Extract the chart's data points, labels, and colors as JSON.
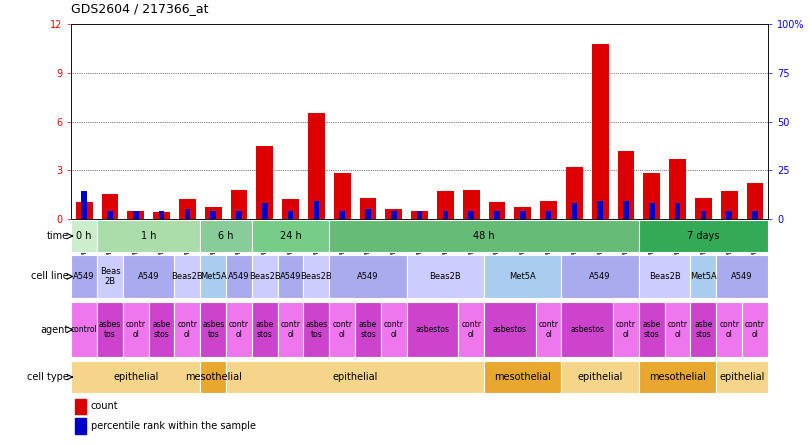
{
  "title": "GDS2604 / 217366_at",
  "samples": [
    "GSM139646",
    "GSM139660",
    "GSM139640",
    "GSM139647",
    "GSM139654",
    "GSM139661",
    "GSM139760",
    "GSM139669",
    "GSM139641",
    "GSM139648",
    "GSM139655",
    "GSM139663",
    "GSM139643",
    "GSM139653",
    "GSM139656",
    "GSM139657",
    "GSM139664",
    "GSM139644",
    "GSM139645",
    "GSM139652",
    "GSM139659",
    "GSM139666",
    "GSM139667",
    "GSM139668",
    "GSM139761",
    "GSM139642",
    "GSM139649"
  ],
  "count_values": [
    1.0,
    1.5,
    0.5,
    0.4,
    1.2,
    0.7,
    1.8,
    4.5,
    1.2,
    6.5,
    2.8,
    1.3,
    0.6,
    0.5,
    1.7,
    1.8,
    1.0,
    0.7,
    1.1,
    3.2,
    10.8,
    4.2,
    2.8,
    3.7,
    1.3,
    1.7,
    2.2
  ],
  "pct_display": [
    14,
    4,
    4,
    4,
    5,
    4,
    4,
    8,
    4,
    9,
    4,
    5,
    4,
    4,
    4,
    4,
    4,
    4,
    4,
    8,
    9,
    9,
    8,
    8,
    4,
    4,
    4
  ],
  "ylim_left": [
    0,
    12
  ],
  "ylim_right": [
    0,
    100
  ],
  "yticks_left": [
    0,
    3,
    6,
    9,
    12
  ],
  "ytick_labels_left": [
    "0",
    "3",
    "6",
    "9",
    "12"
  ],
  "yticks_right": [
    0,
    25,
    50,
    75,
    100
  ],
  "ytick_labels_right": [
    "0",
    "25",
    "50",
    "75",
    "100%"
  ],
  "bar_color_count": "#dd0000",
  "bar_color_pct": "#0000cc",
  "time_spans": [
    {
      "label": "0 h",
      "start": 0,
      "end": 1,
      "color": "#cceecc"
    },
    {
      "label": "1 h",
      "start": 1,
      "end": 5,
      "color": "#aaddaa"
    },
    {
      "label": "6 h",
      "start": 5,
      "end": 7,
      "color": "#88cc99"
    },
    {
      "label": "24 h",
      "start": 7,
      "end": 10,
      "color": "#77cc88"
    },
    {
      "label": "48 h",
      "start": 10,
      "end": 22,
      "color": "#66bb77"
    },
    {
      "label": "7 days",
      "start": 22,
      "end": 27,
      "color": "#33aa55"
    }
  ],
  "cellline_spans": [
    {
      "label": "A549",
      "start": 0,
      "end": 1,
      "color": "#aaaaee"
    },
    {
      "label": "Beas\n2B",
      "start": 1,
      "end": 2,
      "color": "#ccccff"
    },
    {
      "label": "A549",
      "start": 2,
      "end": 4,
      "color": "#aaaaee"
    },
    {
      "label": "Beas2B",
      "start": 4,
      "end": 5,
      "color": "#ccccff"
    },
    {
      "label": "Met5A",
      "start": 5,
      "end": 6,
      "color": "#aaccee"
    },
    {
      "label": "A549",
      "start": 6,
      "end": 7,
      "color": "#aaaaee"
    },
    {
      "label": "Beas2B",
      "start": 7,
      "end": 8,
      "color": "#ccccff"
    },
    {
      "label": "A549",
      "start": 8,
      "end": 9,
      "color": "#aaaaee"
    },
    {
      "label": "Beas2B",
      "start": 9,
      "end": 10,
      "color": "#ccccff"
    },
    {
      "label": "A549",
      "start": 10,
      "end": 13,
      "color": "#aaaaee"
    },
    {
      "label": "Beas2B",
      "start": 13,
      "end": 16,
      "color": "#ccccff"
    },
    {
      "label": "Met5A",
      "start": 16,
      "end": 19,
      "color": "#aaccee"
    },
    {
      "label": "A549",
      "start": 19,
      "end": 22,
      "color": "#aaaaee"
    },
    {
      "label": "Beas2B",
      "start": 22,
      "end": 24,
      "color": "#ccccff"
    },
    {
      "label": "Met5A",
      "start": 24,
      "end": 25,
      "color": "#aaccee"
    },
    {
      "label": "A549",
      "start": 25,
      "end": 27,
      "color": "#aaaaee"
    }
  ],
  "agent_spans": [
    {
      "label": "control",
      "start": 0,
      "end": 1,
      "color": "#ee77ee"
    },
    {
      "label": "asbes\ntos",
      "start": 1,
      "end": 2,
      "color": "#cc44cc"
    },
    {
      "label": "contr\nol",
      "start": 2,
      "end": 3,
      "color": "#ee77ee"
    },
    {
      "label": "asbe\nstos",
      "start": 3,
      "end": 4,
      "color": "#cc44cc"
    },
    {
      "label": "contr\nol",
      "start": 4,
      "end": 5,
      "color": "#ee77ee"
    },
    {
      "label": "asbes\ntos",
      "start": 5,
      "end": 6,
      "color": "#cc44cc"
    },
    {
      "label": "contr\nol",
      "start": 6,
      "end": 7,
      "color": "#ee77ee"
    },
    {
      "label": "asbe\nstos",
      "start": 7,
      "end": 8,
      "color": "#cc44cc"
    },
    {
      "label": "contr\nol",
      "start": 8,
      "end": 9,
      "color": "#ee77ee"
    },
    {
      "label": "asbes\ntos",
      "start": 9,
      "end": 10,
      "color": "#cc44cc"
    },
    {
      "label": "contr\nol",
      "start": 10,
      "end": 11,
      "color": "#ee77ee"
    },
    {
      "label": "asbe\nstos",
      "start": 11,
      "end": 12,
      "color": "#cc44cc"
    },
    {
      "label": "contr\nol",
      "start": 12,
      "end": 13,
      "color": "#ee77ee"
    },
    {
      "label": "asbestos",
      "start": 13,
      "end": 15,
      "color": "#cc44cc"
    },
    {
      "label": "contr\nol",
      "start": 15,
      "end": 16,
      "color": "#ee77ee"
    },
    {
      "label": "asbestos",
      "start": 16,
      "end": 18,
      "color": "#cc44cc"
    },
    {
      "label": "contr\nol",
      "start": 18,
      "end": 19,
      "color": "#ee77ee"
    },
    {
      "label": "asbestos",
      "start": 19,
      "end": 21,
      "color": "#cc44cc"
    },
    {
      "label": "contr\nol",
      "start": 21,
      "end": 22,
      "color": "#ee77ee"
    },
    {
      "label": "asbe\nstos",
      "start": 22,
      "end": 23,
      "color": "#cc44cc"
    },
    {
      "label": "contr\nol",
      "start": 23,
      "end": 24,
      "color": "#ee77ee"
    },
    {
      "label": "asbe\nstos",
      "start": 24,
      "end": 25,
      "color": "#cc44cc"
    },
    {
      "label": "contr\nol",
      "start": 25,
      "end": 26,
      "color": "#ee77ee"
    },
    {
      "label": "contr\nol",
      "start": 26,
      "end": 27,
      "color": "#ee77ee"
    }
  ],
  "celltype_spans": [
    {
      "label": "epithelial",
      "start": 0,
      "end": 5,
      "color": "#f5d58a"
    },
    {
      "label": "mesothelial",
      "start": 5,
      "end": 6,
      "color": "#e8a830"
    },
    {
      "label": "epithelial",
      "start": 6,
      "end": 16,
      "color": "#f5d58a"
    },
    {
      "label": "mesothelial",
      "start": 16,
      "end": 19,
      "color": "#e8a830"
    },
    {
      "label": "epithelial",
      "start": 19,
      "end": 22,
      "color": "#f5d58a"
    },
    {
      "label": "mesothelial",
      "start": 22,
      "end": 25,
      "color": "#e8a830"
    },
    {
      "label": "epithelial",
      "start": 25,
      "end": 27,
      "color": "#f5d58a"
    }
  ],
  "n_bars": 27,
  "background_color": "#ffffff"
}
